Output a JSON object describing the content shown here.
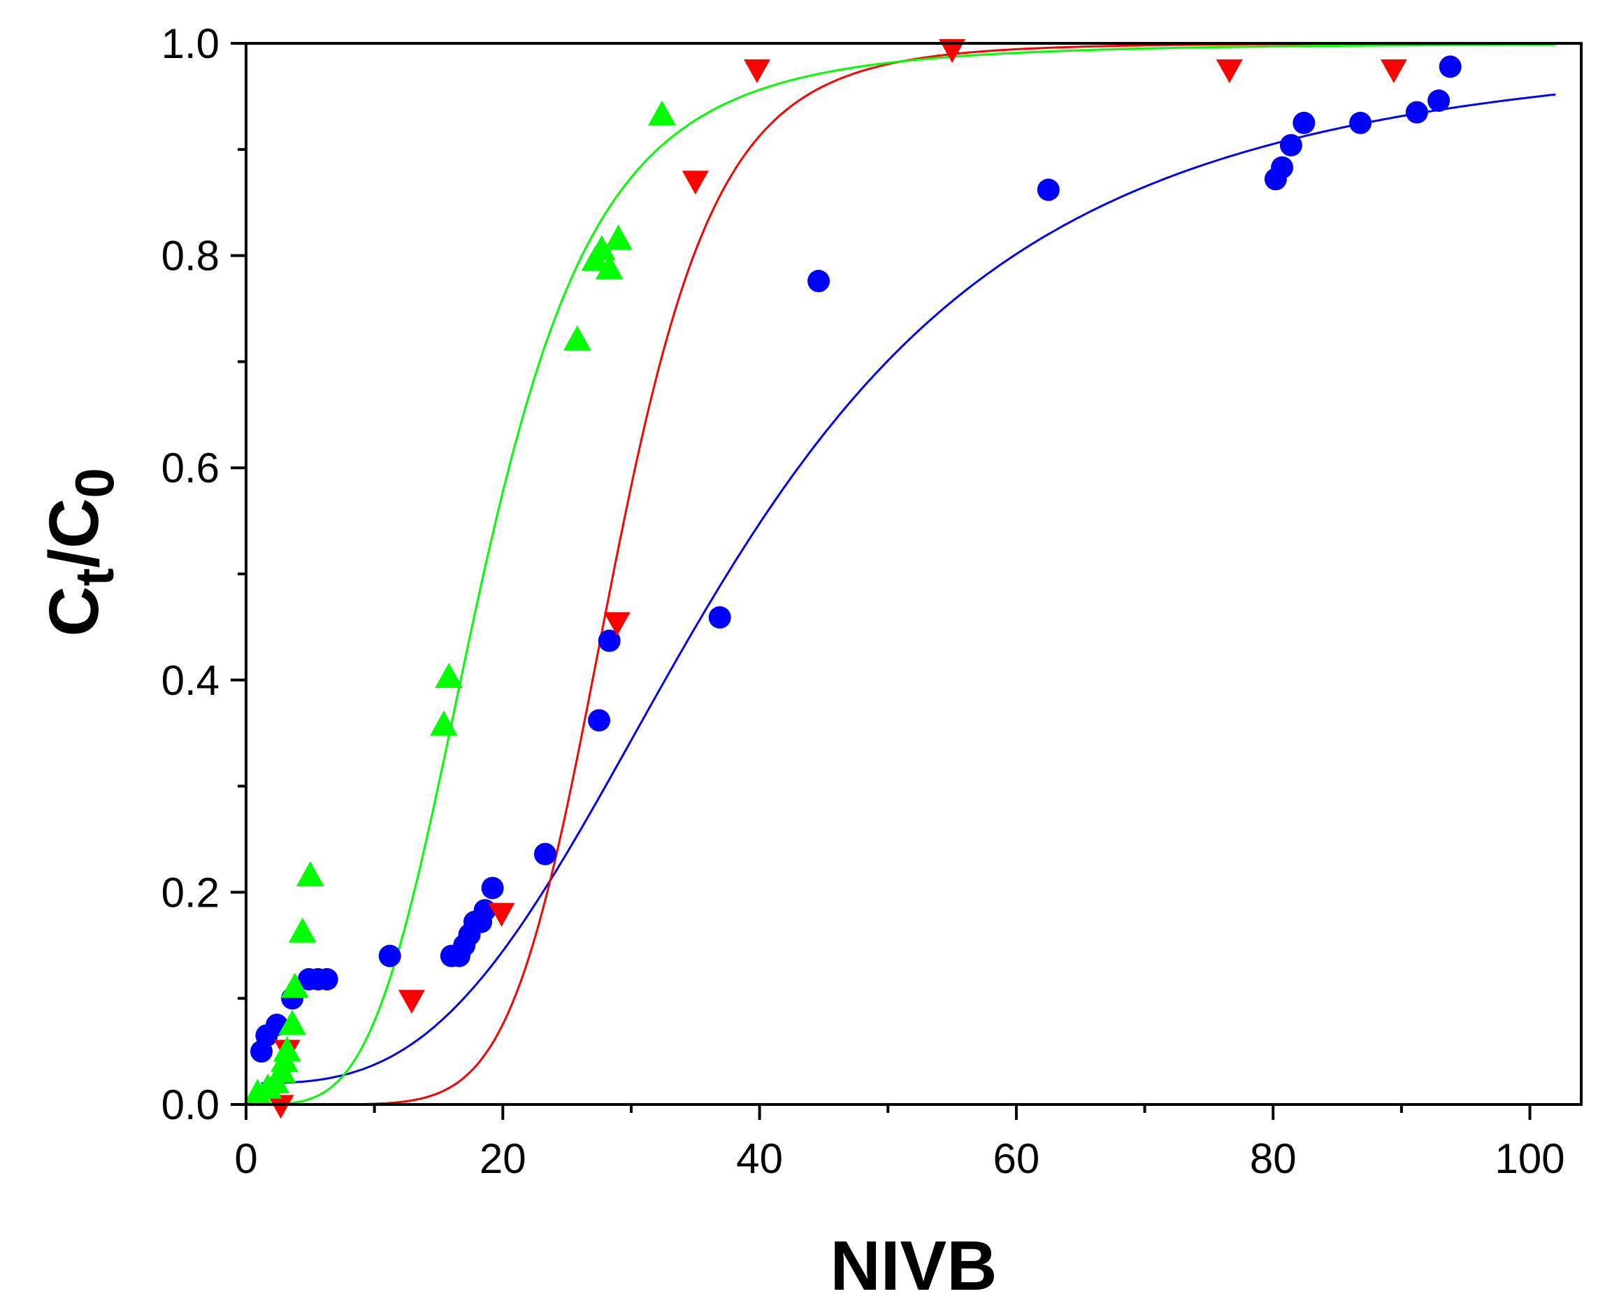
{
  "chart_data": {
    "type": "scatter",
    "title": "",
    "xlabel": "NIVB",
    "ylabel": {
      "main": "C",
      "sub1": "t",
      "mid": "/C",
      "sub2": "0"
    },
    "xlim": [
      0,
      104
    ],
    "ylim": [
      0,
      1.0
    ],
    "xticks": [
      0,
      20,
      40,
      60,
      80,
      100
    ],
    "xtick_labels": [
      "0",
      "20",
      "40",
      "60",
      "80",
      "100"
    ],
    "yticks": [
      0.0,
      0.2,
      0.4,
      0.6,
      0.8,
      1.0
    ],
    "ytick_labels": [
      "0.0",
      "0.2",
      "0.4",
      "0.6",
      "0.8",
      "1.0"
    ],
    "grid": false,
    "legend": "none",
    "series": [
      {
        "name": "blue circles",
        "marker": "circle",
        "color": "#0000ff",
        "points": [
          [
            1.2,
            0.05
          ],
          [
            1.6,
            0.065
          ],
          [
            2.4,
            0.075
          ],
          [
            3.6,
            0.1
          ],
          [
            4.9,
            0.118
          ],
          [
            5.6,
            0.118
          ],
          [
            6.3,
            0.118
          ],
          [
            11.2,
            0.14
          ],
          [
            16.0,
            0.14
          ],
          [
            16.6,
            0.14
          ],
          [
            17.0,
            0.15
          ],
          [
            17.4,
            0.16
          ],
          [
            17.8,
            0.172
          ],
          [
            18.3,
            0.172
          ],
          [
            18.6,
            0.183
          ],
          [
            19.2,
            0.204
          ],
          [
            23.3,
            0.236
          ],
          [
            27.5,
            0.362
          ],
          [
            28.3,
            0.437
          ],
          [
            36.9,
            0.459
          ],
          [
            44.6,
            0.776
          ],
          [
            62.5,
            0.862
          ],
          [
            80.2,
            0.872
          ],
          [
            80.7,
            0.883
          ],
          [
            81.4,
            0.904
          ],
          [
            82.4,
            0.925
          ],
          [
            86.8,
            0.925
          ],
          [
            91.2,
            0.935
          ],
          [
            92.9,
            0.946
          ],
          [
            93.8,
            0.978
          ]
        ],
        "fit": {
          "type": "logistic",
          "A1": 0.02,
          "A2": 1.0,
          "x0": 38.0,
          "p": 3.0,
          "xrange": [
            1.2,
            102
          ]
        }
      },
      {
        "name": "red down-triangles",
        "marker": "triangle-down",
        "color": "#ff0000",
        "points": [
          [
            2.7,
            0.0
          ],
          [
            3.2,
            0.052
          ],
          [
            12.9,
            0.099
          ],
          [
            19.9,
            0.181
          ],
          [
            28.9,
            0.455
          ],
          [
            35.0,
            0.871
          ],
          [
            39.8,
            0.976
          ],
          [
            55.0,
            0.995
          ],
          [
            76.6,
            0.976
          ],
          [
            89.4,
            0.976
          ]
        ],
        "fit": {
          "type": "logistic",
          "A1": 0.0,
          "A2": 1.0,
          "x0": 28.6,
          "p": 7.0,
          "xrange": [
            1.2,
            102
          ]
        }
      },
      {
        "name": "green up-triangles",
        "marker": "triangle-up",
        "color": "#00ff00",
        "points": [
          [
            0.9,
            0.01
          ],
          [
            1.7,
            0.015
          ],
          [
            2.3,
            0.02
          ],
          [
            2.8,
            0.03
          ],
          [
            3.0,
            0.04
          ],
          [
            3.2,
            0.05
          ],
          [
            3.6,
            0.075
          ],
          [
            3.8,
            0.11
          ],
          [
            4.4,
            0.162
          ],
          [
            5.0,
            0.215
          ],
          [
            15.4,
            0.357
          ],
          [
            15.8,
            0.402
          ],
          [
            25.8,
            0.72
          ],
          [
            27.2,
            0.795
          ],
          [
            27.7,
            0.805
          ],
          [
            28.3,
            0.787
          ],
          [
            29.0,
            0.815
          ],
          [
            32.4,
            0.932
          ]
        ],
        "fit": {
          "type": "logistic",
          "A1": 0.0,
          "A2": 1.0,
          "x0": 18.5,
          "p": 4.0,
          "xrange": [
            1.2,
            102
          ]
        }
      }
    ]
  }
}
